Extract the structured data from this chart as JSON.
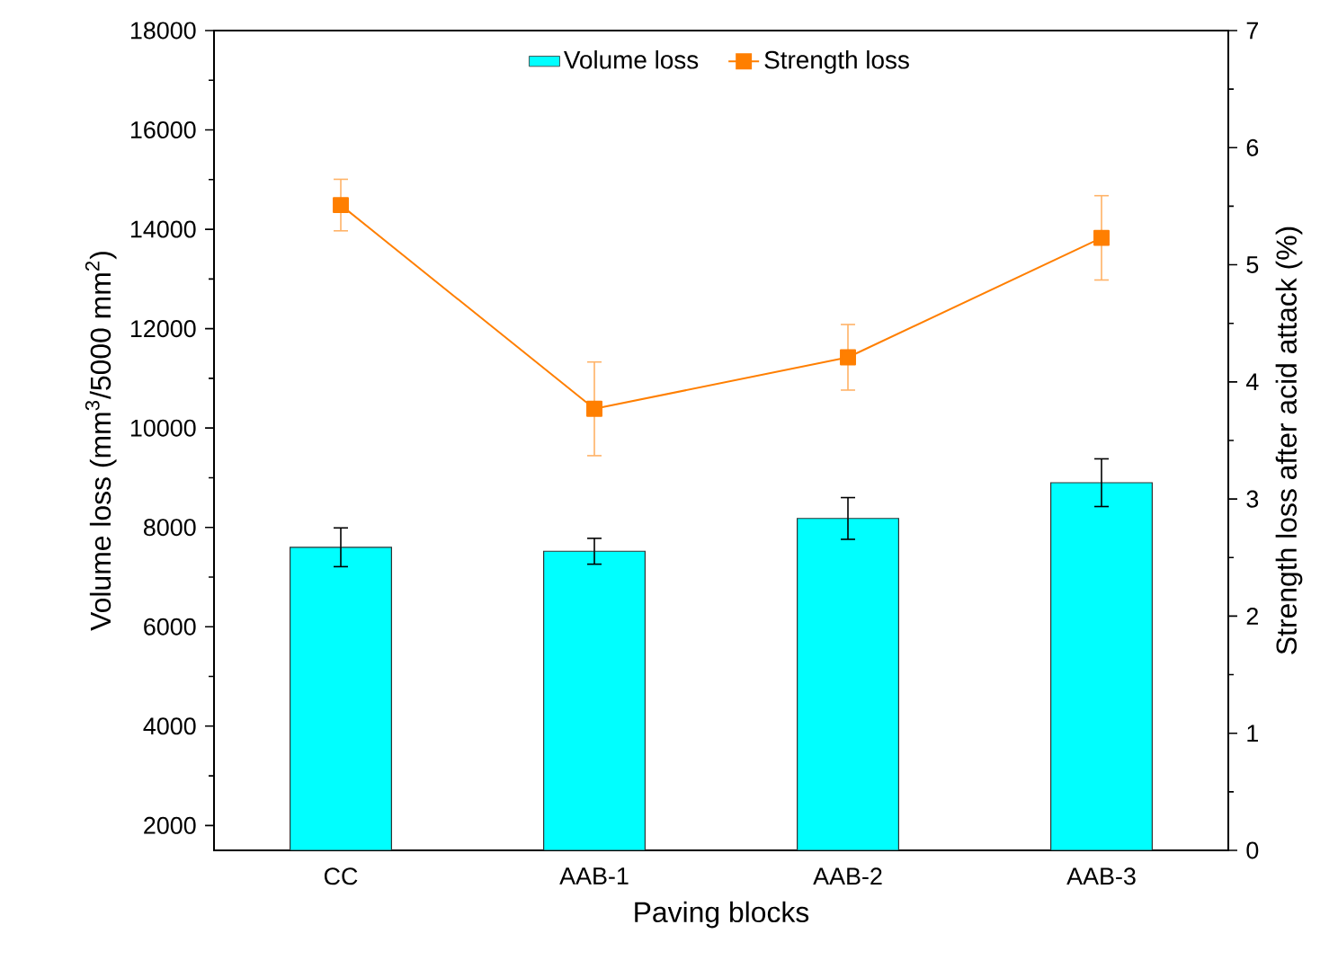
{
  "chart_data": {
    "type": "bar",
    "xlabel": "Paving blocks",
    "ylabel": "Volume loss (mm$^{3}$/5000 mm$^{2}$)",
    "y2label": "Strength loss after acid attack (%)",
    "categories": [
      "CC",
      "AAB-1",
      "AAB-2",
      "AAB-3"
    ],
    "series": [
      {
        "name": "Volume loss",
        "color": "#00ffff",
        "values": [
          7600,
          7520,
          8180,
          8900
        ],
        "errors": [
          390,
          260,
          420,
          480
        ]
      },
      {
        "name": "Strength loss",
        "type": "line",
        "axis": "y2",
        "color": "#ff7f00",
        "values": [
          5.51,
          3.77,
          4.21,
          5.23
        ],
        "errors": [
          0.22,
          0.4,
          0.28,
          0.36
        ]
      }
    ],
    "ylim": [
      1500,
      18000
    ],
    "yticks": [
      2000,
      4000,
      6000,
      8000,
      10000,
      12000,
      14000,
      16000,
      18000
    ],
    "y2lim": [
      0,
      7
    ],
    "y2ticks": [
      0,
      1,
      2,
      3,
      4,
      5,
      6,
      7
    ],
    "legend": "top",
    "marker": "square",
    "grid": false
  }
}
